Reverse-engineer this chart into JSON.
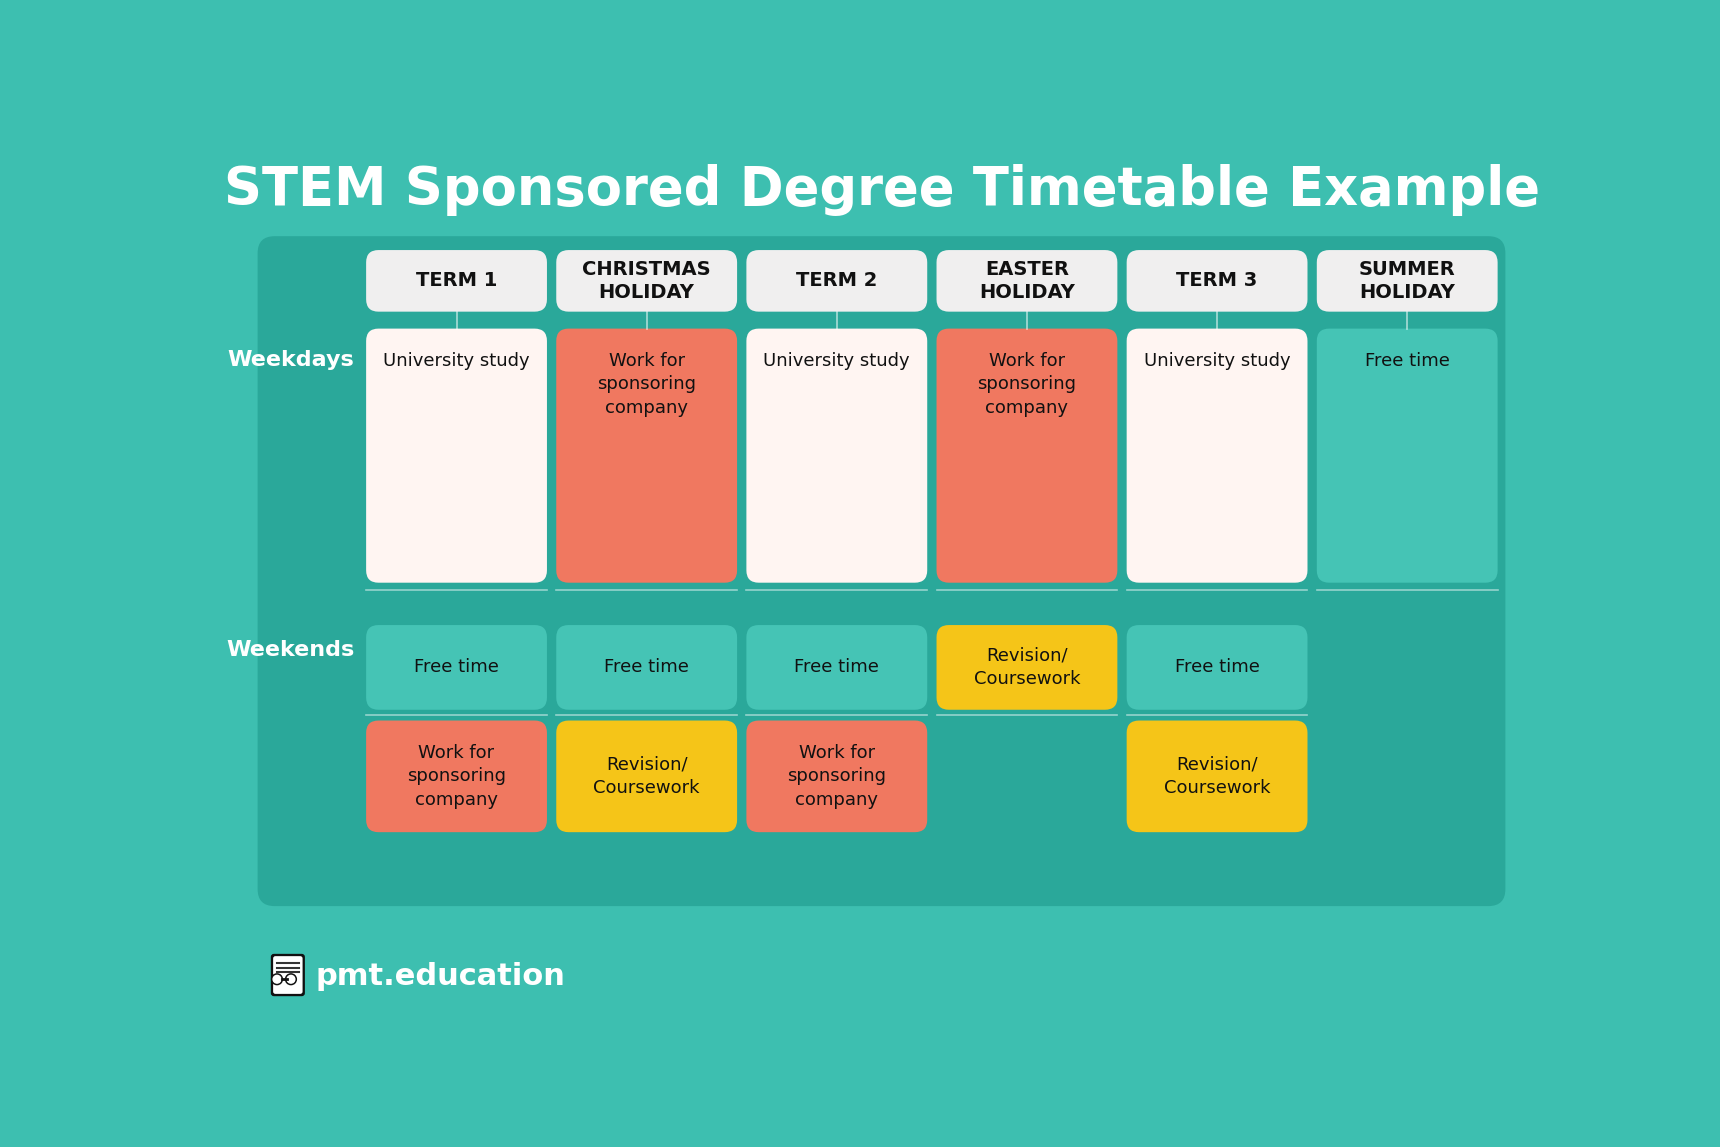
{
  "title": "STEM Sponsored Degree Timetable Example",
  "title_color": "#FFFFFF",
  "title_fontsize": 38,
  "bg_color": "#3DBFB0",
  "panel_bg": "#2AA89A",
  "logo_text": "pmt.education",
  "col_headers": [
    "TERM 1",
    "CHRISTMAS\nHOLIDAY",
    "TERM 2",
    "EASTER\nHOLIDAY",
    "TERM 3",
    "SUMMER\nHOLIDAY"
  ],
  "col_header_bg": "#F0EFEF",
  "col_header_color": "#111111",
  "col_header_fontsize": 14,
  "row_label_color": "#FFFFFF",
  "row_label_fontsize": 16,
  "weekday_cells": [
    {
      "text": "University study",
      "color": "#FFF5F2",
      "text_color": "#111111"
    },
    {
      "text": "Work for\nsponsoring\ncompany",
      "color": "#F07860",
      "text_color": "#111111"
    },
    {
      "text": "University study",
      "color": "#FFF5F2",
      "text_color": "#111111"
    },
    {
      "text": "Work for\nsponsoring\ncompany",
      "color": "#F07860",
      "text_color": "#111111"
    },
    {
      "text": "University study",
      "color": "#FFF5F2",
      "text_color": "#111111"
    },
    {
      "text": "Free time",
      "color": "#45C4B5",
      "text_color": "#111111"
    }
  ],
  "weekend_top_cells": [
    {
      "text": "Free time",
      "color": "#45C4B5",
      "text_color": "#111111"
    },
    {
      "text": "Free time",
      "color": "#45C4B5",
      "text_color": "#111111"
    },
    {
      "text": "Free time",
      "color": "#45C4B5",
      "text_color": "#111111"
    },
    {
      "text": "Revision/\nCoursework",
      "color": "#F5C518",
      "text_color": "#111111"
    },
    {
      "text": "Free time",
      "color": "#45C4B5",
      "text_color": "#111111"
    },
    {
      "text": "",
      "color": "",
      "text_color": "#111111"
    }
  ],
  "weekend_bot_cells": [
    {
      "text": "Work for\nsponsoring\ncompany",
      "color": "#F07860",
      "text_color": "#111111"
    },
    {
      "text": "Revision/\nCoursework",
      "color": "#F5C518",
      "text_color": "#111111"
    },
    {
      "text": "Work for\nsponsoring\ncompany",
      "color": "#F07860",
      "text_color": "#111111"
    },
    {
      "text": "",
      "color": "",
      "text_color": "#111111"
    },
    {
      "text": "Revision/\nCoursework",
      "color": "#F5C518",
      "text_color": "#111111"
    },
    {
      "text": "",
      "color": "",
      "text_color": "#111111"
    }
  ]
}
